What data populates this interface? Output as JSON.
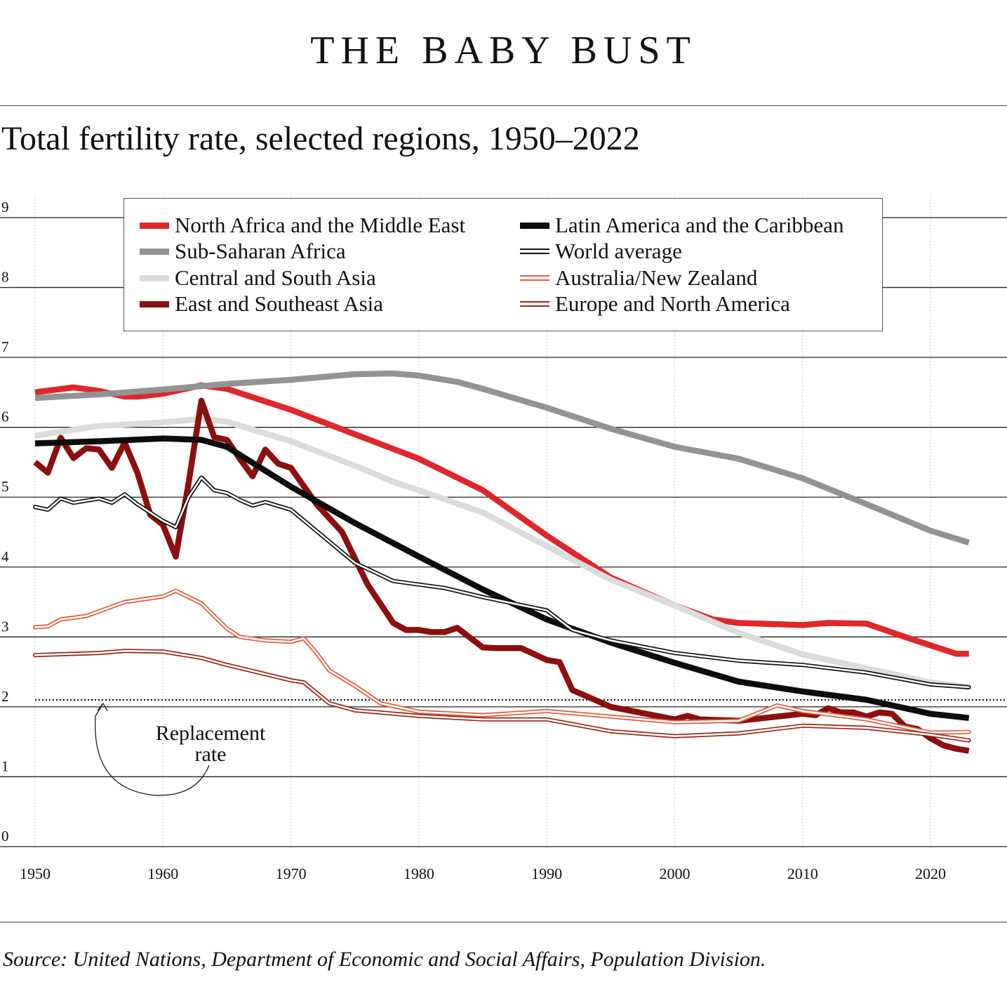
{
  "headline": "THE BABY BUST",
  "source": "Source: United Nations, Department of Economic and Social Affairs, Population Division.",
  "chart_data": {
    "type": "line",
    "title": "Total fertility rate, selected regions, 1950–2022",
    "xlim": [
      1950,
      2023
    ],
    "ylim": [
      0,
      9
    ],
    "xticks": [
      1950,
      1960,
      1970,
      1980,
      1990,
      2000,
      2010,
      2020
    ],
    "yticks": [
      0,
      1,
      2,
      3,
      4,
      5,
      6,
      7,
      8,
      9
    ],
    "grid": "horizontal solid, vertical dotted",
    "legend_position": "top-center",
    "reference_line": {
      "y": 2.1,
      "style": "dotted",
      "label": "Replacement rate"
    },
    "series": [
      {
        "name": "North Africa and the Middle East",
        "color": "#e0272b",
        "style": "thick",
        "x": [
          1950,
          1953,
          1955,
          1957,
          1958,
          1960,
          1963,
          1965,
          1970,
          1975,
          1980,
          1985,
          1990,
          1995,
          2000,
          2003,
          2005,
          2010,
          2012,
          2015,
          2018,
          2020,
          2022,
          2023
        ],
        "y": [
          6.5,
          6.57,
          6.52,
          6.44,
          6.44,
          6.48,
          6.6,
          6.55,
          6.25,
          5.9,
          5.55,
          5.1,
          4.45,
          3.85,
          3.45,
          3.25,
          3.2,
          3.17,
          3.2,
          3.19,
          3.0,
          2.88,
          2.76,
          2.76
        ]
      },
      {
        "name": "Sub-Saharan Africa",
        "color": "#939393",
        "style": "thick",
        "x": [
          1950,
          1955,
          1960,
          1965,
          1970,
          1975,
          1978,
          1980,
          1983,
          1985,
          1990,
          1995,
          2000,
          2005,
          2010,
          2015,
          2020,
          2023
        ],
        "y": [
          6.42,
          6.47,
          6.54,
          6.62,
          6.68,
          6.76,
          6.77,
          6.74,
          6.65,
          6.55,
          6.28,
          5.98,
          5.72,
          5.55,
          5.27,
          4.9,
          4.52,
          4.35
        ]
      },
      {
        "name": "Central and South Asia",
        "color": "#dcdcdc",
        "style": "thick",
        "x": [
          1950,
          1955,
          1960,
          1963,
          1965,
          1970,
          1975,
          1978,
          1980,
          1985,
          1990,
          1995,
          2000,
          2005,
          2010,
          2015,
          2020,
          2023
        ],
        "y": [
          5.88,
          6.02,
          6.07,
          6.12,
          6.08,
          5.8,
          5.45,
          5.22,
          5.1,
          4.78,
          4.3,
          3.82,
          3.45,
          3.06,
          2.75,
          2.55,
          2.35,
          2.28
        ]
      },
      {
        "name": "East and Southeast Asia",
        "color": "#8b0f0f",
        "style": "thick",
        "x": [
          1950,
          1951,
          1952,
          1953,
          1954,
          1955,
          1956,
          1957,
          1958,
          1959,
          1960,
          1961,
          1962,
          1963,
          1964,
          1965,
          1966,
          1967,
          1968,
          1969,
          1970,
          1972,
          1974,
          1976,
          1978,
          1979,
          1980,
          1981,
          1982,
          1983,
          1985,
          1986,
          1987,
          1988,
          1990,
          1991,
          1992,
          1995,
          2000,
          2001,
          2002,
          2005,
          2010,
          2011,
          2012,
          2013,
          2014,
          2015,
          2016,
          2017,
          2018,
          2019,
          2020,
          2021,
          2022,
          2023
        ],
        "y": [
          5.5,
          5.35,
          5.85,
          5.56,
          5.7,
          5.68,
          5.42,
          5.78,
          5.35,
          4.75,
          4.6,
          4.15,
          5.2,
          6.38,
          5.86,
          5.82,
          5.55,
          5.3,
          5.68,
          5.48,
          5.42,
          4.9,
          4.5,
          3.75,
          3.2,
          3.1,
          3.1,
          3.07,
          3.07,
          3.13,
          2.85,
          2.84,
          2.84,
          2.84,
          2.67,
          2.64,
          2.24,
          2.0,
          1.82,
          1.87,
          1.82,
          1.8,
          1.9,
          1.88,
          1.98,
          1.92,
          1.92,
          1.86,
          1.92,
          1.9,
          1.72,
          1.68,
          1.55,
          1.45,
          1.4,
          1.37
        ]
      },
      {
        "name": "Latin America and the Caribbean",
        "color": "#0c0c0c",
        "style": "thick",
        "x": [
          1950,
          1955,
          1960,
          1963,
          1965,
          1970,
          1975,
          1980,
          1985,
          1990,
          1995,
          2000,
          2005,
          2010,
          2015,
          2020,
          2023
        ],
        "y": [
          5.77,
          5.8,
          5.84,
          5.82,
          5.72,
          5.15,
          4.63,
          4.15,
          3.68,
          3.25,
          2.92,
          2.63,
          2.36,
          2.22,
          2.1,
          1.9,
          1.84
        ]
      },
      {
        "name": "World average",
        "color": "#111111",
        "style": "double",
        "x": [
          1950,
          1951,
          1952,
          1953,
          1955,
          1956,
          1957,
          1958,
          1960,
          1961,
          1962,
          1963,
          1964,
          1965,
          1966,
          1967,
          1968,
          1970,
          1975,
          1978,
          1980,
          1982,
          1985,
          1990,
          1992,
          1995,
          2000,
          2005,
          2010,
          2015,
          2020,
          2023
        ],
        "y": [
          4.86,
          4.82,
          4.98,
          4.92,
          4.98,
          4.92,
          5.04,
          4.9,
          4.66,
          4.57,
          5.0,
          5.28,
          5.1,
          5.06,
          4.96,
          4.88,
          4.93,
          4.82,
          4.06,
          3.8,
          3.75,
          3.7,
          3.57,
          3.38,
          3.1,
          2.95,
          2.77,
          2.66,
          2.6,
          2.49,
          2.32,
          2.28
        ]
      },
      {
        "name": "Australia/New Zealand",
        "color": "#e25a3c",
        "style": "double",
        "x": [
          1950,
          1951,
          1952,
          1954,
          1957,
          1960,
          1961,
          1963,
          1965,
          1966,
          1968,
          1970,
          1971,
          1972,
          1973,
          1975,
          1977,
          1980,
          1985,
          1990,
          1995,
          2000,
          2005,
          2008,
          2010,
          2015,
          2020,
          2023
        ],
        "y": [
          3.14,
          3.15,
          3.25,
          3.3,
          3.5,
          3.58,
          3.66,
          3.48,
          3.12,
          3.0,
          2.95,
          2.93,
          2.98,
          2.77,
          2.52,
          2.3,
          2.05,
          1.93,
          1.88,
          1.94,
          1.86,
          1.78,
          1.8,
          2.02,
          1.94,
          1.82,
          1.63,
          1.64
        ]
      },
      {
        "name": "Europe and North America",
        "color": "#9a2414",
        "style": "double",
        "x": [
          1950,
          1955,
          1957,
          1960,
          1963,
          1965,
          1970,
          1971,
          1973,
          1975,
          1980,
          1985,
          1990,
          1995,
          2000,
          2005,
          2010,
          2015,
          2020,
          2023
        ],
        "y": [
          2.74,
          2.77,
          2.8,
          2.79,
          2.7,
          2.6,
          2.38,
          2.35,
          2.05,
          1.95,
          1.87,
          1.82,
          1.82,
          1.65,
          1.58,
          1.62,
          1.73,
          1.7,
          1.6,
          1.52
        ]
      }
    ]
  }
}
